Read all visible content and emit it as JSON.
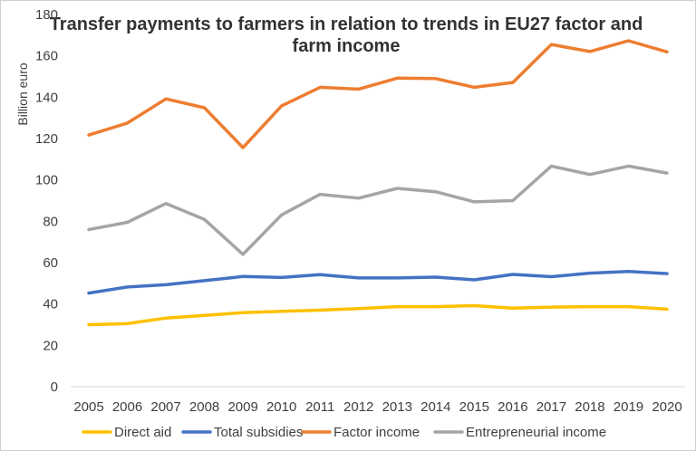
{
  "chart_data": {
    "type": "line",
    "title_lines": [
      "Transfer payments to farmers in relation to trends in EU27 factor and",
      "farm income"
    ],
    "ylabel": "Billion euro",
    "xlabel": "",
    "ylim": [
      0,
      180
    ],
    "yticks": [
      0,
      20,
      40,
      60,
      80,
      100,
      120,
      140,
      160,
      180
    ],
    "categories": [
      "2005",
      "2006",
      "2007",
      "2008",
      "2009",
      "2010",
      "2011",
      "2012",
      "2013",
      "2014",
      "2015",
      "2016",
      "2017",
      "2018",
      "2019",
      "2020"
    ],
    "grid": false,
    "legend_position": "bottom",
    "series": [
      {
        "name": "Direct aid",
        "color": "#FFC000",
        "values": [
          30,
          30.5,
          33.2,
          34.5,
          35.8,
          36.5,
          37,
          37.8,
          38.7,
          38.7,
          39.2,
          38,
          38.5,
          38.7,
          38.7,
          37.5
        ]
      },
      {
        "name": "Total subsidies",
        "color": "#4472C4",
        "values": [
          45.3,
          48.2,
          49.3,
          51.3,
          53.3,
          52.8,
          54.2,
          52.6,
          52.6,
          53,
          51.7,
          54.3,
          53.2,
          54.9,
          55.7,
          54.7
        ]
      },
      {
        "name": "Factor income",
        "color": "#ED7D31",
        "values": [
          121.7,
          127.5,
          139.2,
          134.9,
          115.6,
          135.8,
          144.8,
          143.9,
          149.2,
          149,
          144.8,
          147.1,
          165.5,
          162.1,
          167.3,
          161.9
        ]
      },
      {
        "name": "Entrepreneurial income",
        "color": "#A5A5A5",
        "values": [
          76,
          79.5,
          88.6,
          80.9,
          64,
          83.1,
          93,
          91.2,
          95.9,
          94.3,
          89.4,
          90,
          106.7,
          102.6,
          106.7,
          103.3
        ]
      }
    ]
  }
}
